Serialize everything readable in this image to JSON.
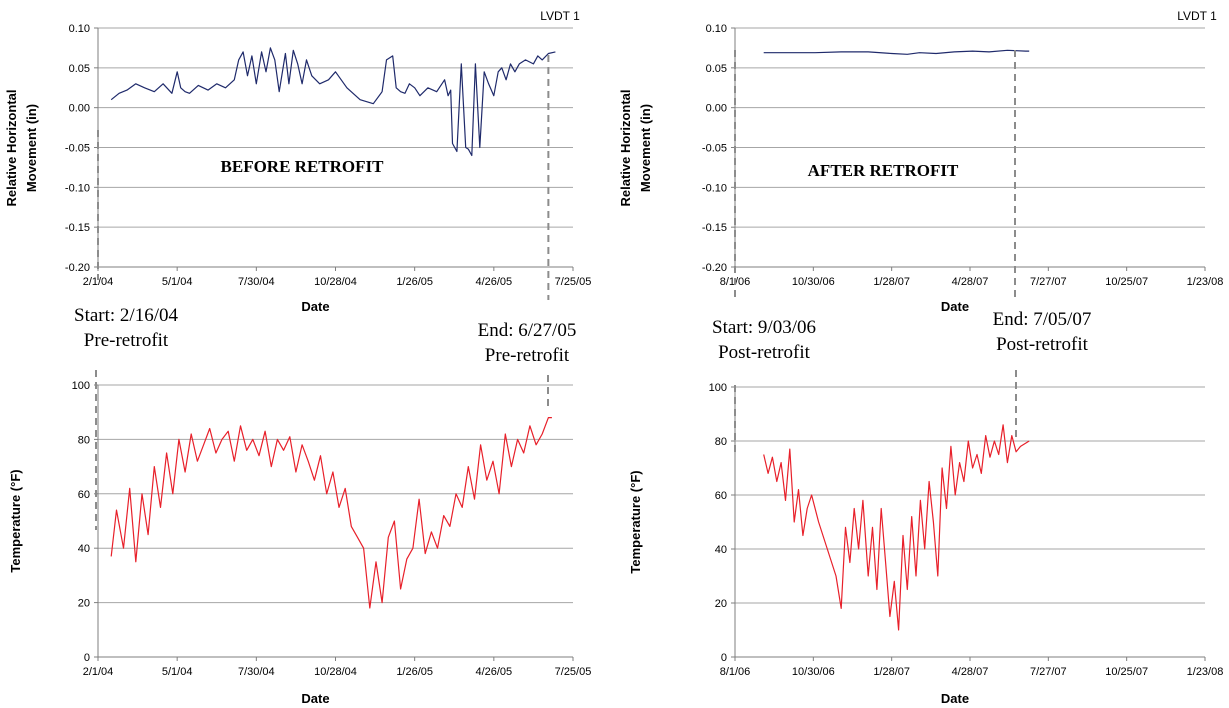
{
  "colors": {
    "movement_line": "#1f2a6b",
    "temperature_line": "#e8202a",
    "grid": "#a6a6a6",
    "axis": "#7f7f7f",
    "dashed_marker": "#8c8c8c"
  },
  "annotations": {
    "start_pre": [
      "Start: 2/16/04",
      "Pre-retrofit"
    ],
    "end_pre": [
      "End: 6/27/05",
      "Pre-retrofit"
    ],
    "start_post": [
      "Start: 9/03/06",
      "Post-retrofit"
    ],
    "end_post": [
      "End: 7/05/07",
      "Post-retrofit"
    ]
  },
  "chart_data": [
    {
      "type": "line",
      "corner_label": "LVDT 1",
      "overlay_text": "BEFORE RETROFIT",
      "xlabel": "Date",
      "ylabel": [
        "Relative Horizontal",
        "Movement (in)"
      ],
      "xlim": [
        "2004-02-01",
        "2005-07-25"
      ],
      "x_ticks": [
        "2/1/04",
        "5/1/04",
        "7/30/04",
        "10/28/04",
        "1/26/05",
        "4/26/05",
        "7/25/05"
      ],
      "ylim": [
        -0.2,
        0.1
      ],
      "y_ticks": [
        "0.10",
        "0.05",
        "0.00",
        "-0.05",
        "-0.10",
        "-0.15",
        "-0.20"
      ],
      "grid": true,
      "markers": [
        "2004-02-16",
        "2005-06-27"
      ],
      "series": [
        {
          "x": [
            "2004-02-16",
            "2004-02-25",
            "2004-03-05",
            "2004-03-15",
            "2004-03-25",
            "2004-04-05",
            "2004-04-15",
            "2004-04-25",
            "2004-05-01",
            "2004-05-05",
            "2004-05-10",
            "2004-05-15",
            "2004-05-25",
            "2004-06-05",
            "2004-06-15",
            "2004-06-25",
            "2004-07-05",
            "2004-07-10",
            "2004-07-15",
            "2004-07-20",
            "2004-07-25",
            "2004-07-30",
            "2004-08-05",
            "2004-08-10",
            "2004-08-15",
            "2004-08-20",
            "2004-08-25",
            "2004-09-01",
            "2004-09-05",
            "2004-09-10",
            "2004-09-15",
            "2004-09-20",
            "2004-09-25",
            "2004-10-01",
            "2004-10-10",
            "2004-10-20",
            "2004-10-28",
            "2004-11-10",
            "2004-11-25",
            "2004-12-10",
            "2004-12-20",
            "2004-12-25",
            "2005-01-01",
            "2005-01-05",
            "2005-01-10",
            "2005-01-15",
            "2005-01-20",
            "2005-01-26",
            "2005-02-01",
            "2005-02-10",
            "2005-02-20",
            "2005-03-01",
            "2005-03-05",
            "2005-03-08",
            "2005-03-10",
            "2005-03-15",
            "2005-03-20",
            "2005-03-25",
            "2005-03-28",
            "2005-04-01",
            "2005-04-05",
            "2005-04-10",
            "2005-04-15",
            "2005-04-20",
            "2005-04-26",
            "2005-05-01",
            "2005-05-05",
            "2005-05-10",
            "2005-05-15",
            "2005-05-20",
            "2005-05-25",
            "2005-06-01",
            "2005-06-10",
            "2005-06-15",
            "2005-06-20",
            "2005-06-27",
            "2005-07-05"
          ],
          "values": [
            0.01,
            0.018,
            0.022,
            0.03,
            0.025,
            0.02,
            0.03,
            0.018,
            0.045,
            0.025,
            0.02,
            0.018,
            0.028,
            0.022,
            0.03,
            0.025,
            0.035,
            0.06,
            0.07,
            0.04,
            0.065,
            0.03,
            0.07,
            0.045,
            0.075,
            0.06,
            0.02,
            0.068,
            0.03,
            0.072,
            0.055,
            0.03,
            0.06,
            0.04,
            0.03,
            0.035,
            0.045,
            0.025,
            0.01,
            0.005,
            0.02,
            0.06,
            0.065,
            0.025,
            0.02,
            0.018,
            0.03,
            0.025,
            0.015,
            0.025,
            0.02,
            0.035,
            0.015,
            0.022,
            -0.045,
            -0.055,
            0.055,
            -0.05,
            -0.052,
            -0.06,
            0.055,
            -0.05,
            0.045,
            0.03,
            0.015,
            0.045,
            0.05,
            0.035,
            0.055,
            0.045,
            0.055,
            0.06,
            0.055,
            0.065,
            0.06,
            0.068,
            0.07
          ]
        }
      ]
    },
    {
      "type": "line",
      "corner_label": "LVDT 1",
      "overlay_text": "AFTER RETROFIT",
      "xlabel": "Date",
      "ylabel": [
        "Relative Horizontal",
        "Movement (in)"
      ],
      "xlim": [
        "2006-08-01",
        "2008-01-23"
      ],
      "x_ticks": [
        "8/1/06",
        "10/30/06",
        "1/28/07",
        "4/28/07",
        "7/27/07",
        "10/25/07",
        "1/23/08"
      ],
      "ylim": [
        -0.2,
        0.1
      ],
      "y_ticks": [
        "0.10",
        "0.05",
        "0.00",
        "-0.05",
        "-0.10",
        "-0.15",
        "-0.20"
      ],
      "grid": true,
      "markers": [
        "2006-09-03",
        "2007-07-05"
      ],
      "series": [
        {
          "x": [
            "2006-09-03",
            "2006-10-01",
            "2006-11-01",
            "2006-12-01",
            "2007-01-01",
            "2007-01-28",
            "2007-02-15",
            "2007-03-01",
            "2007-03-20",
            "2007-04-10",
            "2007-05-01",
            "2007-05-20",
            "2007-06-10",
            "2007-07-01",
            "2007-07-05"
          ],
          "values": [
            0.069,
            0.069,
            0.069,
            0.07,
            0.07,
            0.068,
            0.067,
            0.069,
            0.068,
            0.07,
            0.071,
            0.07,
            0.072,
            0.071,
            0.071
          ]
        }
      ]
    },
    {
      "type": "line",
      "xlabel": "Date",
      "ylabel": "Temperature (°F)",
      "xlim": [
        "2004-02-01",
        "2005-07-25"
      ],
      "x_ticks": [
        "2/1/04",
        "5/1/04",
        "7/30/04",
        "10/28/04",
        "1/26/05",
        "4/26/05",
        "7/25/05"
      ],
      "ylim": [
        0,
        100
      ],
      "y_ticks": [
        "100",
        "80",
        "60",
        "40",
        "20",
        "0"
      ],
      "grid": true,
      "markers": [
        "2004-02-16"
      ],
      "series": [
        {
          "x": [
            "2004-02-16",
            "2004-02-22",
            "2004-03-01",
            "2004-03-08",
            "2004-03-15",
            "2004-03-22",
            "2004-03-29",
            "2004-04-05",
            "2004-04-12",
            "2004-04-19",
            "2004-04-26",
            "2004-05-03",
            "2004-05-10",
            "2004-05-17",
            "2004-05-24",
            "2004-05-31",
            "2004-06-07",
            "2004-06-14",
            "2004-06-21",
            "2004-06-28",
            "2004-07-05",
            "2004-07-12",
            "2004-07-19",
            "2004-07-26",
            "2004-08-02",
            "2004-08-09",
            "2004-08-16",
            "2004-08-23",
            "2004-08-30",
            "2004-09-06",
            "2004-09-13",
            "2004-09-20",
            "2004-09-27",
            "2004-10-04",
            "2004-10-11",
            "2004-10-18",
            "2004-10-25",
            "2004-11-01",
            "2004-11-08",
            "2004-11-15",
            "2004-11-22",
            "2004-11-29",
            "2004-12-06",
            "2004-12-13",
            "2004-12-20",
            "2004-12-27",
            "2005-01-03",
            "2005-01-10",
            "2005-01-17",
            "2005-01-24",
            "2005-01-31",
            "2005-02-07",
            "2005-02-14",
            "2005-02-21",
            "2005-02-28",
            "2005-03-07",
            "2005-03-14",
            "2005-03-21",
            "2005-03-28",
            "2005-04-04",
            "2005-04-11",
            "2005-04-18",
            "2005-04-25",
            "2005-05-02",
            "2005-05-09",
            "2005-05-16",
            "2005-05-23",
            "2005-05-30",
            "2005-06-06",
            "2005-06-13",
            "2005-06-20",
            "2005-06-27",
            "2005-07-01"
          ],
          "values": [
            37,
            54,
            40,
            62,
            35,
            60,
            45,
            70,
            55,
            75,
            60,
            80,
            68,
            82,
            72,
            78,
            84,
            75,
            80,
            83,
            72,
            85,
            76,
            80,
            74,
            83,
            70,
            80,
            76,
            81,
            68,
            78,
            72,
            65,
            74,
            60,
            68,
            55,
            62,
            48,
            44,
            40,
            18,
            35,
            20,
            44,
            50,
            25,
            36,
            40,
            58,
            38,
            46,
            40,
            52,
            48,
            60,
            55,
            70,
            58,
            78,
            65,
            72,
            60,
            82,
            70,
            80,
            75,
            85,
            78,
            82,
            88,
            88
          ]
        }
      ]
    },
    {
      "type": "line",
      "xlabel": "Date",
      "ylabel": "Temperature (°F)",
      "xlim": [
        "2006-08-01",
        "2008-01-23"
      ],
      "x_ticks": [
        "8/1/06",
        "10/30/06",
        "1/28/07",
        "4/28/07",
        "7/27/07",
        "10/25/07",
        "1/23/08"
      ],
      "ylim": [
        0,
        100
      ],
      "y_ticks": [
        "100",
        "80",
        "60",
        "40",
        "20",
        "0"
      ],
      "grid": true,
      "markers": [],
      "series": [
        {
          "x": [
            "2006-09-03",
            "2006-09-08",
            "2006-09-13",
            "2006-09-18",
            "2006-09-23",
            "2006-09-28",
            "2006-10-03",
            "2006-10-08",
            "2006-10-13",
            "2006-10-18",
            "2006-10-23",
            "2006-10-28",
            "2006-11-05",
            "2006-11-15",
            "2006-11-25",
            "2006-12-01",
            "2006-12-06",
            "2006-12-11",
            "2006-12-16",
            "2006-12-21",
            "2006-12-26",
            "2007-01-01",
            "2007-01-06",
            "2007-01-11",
            "2007-01-16",
            "2007-01-21",
            "2007-01-26",
            "2007-01-31",
            "2007-02-05",
            "2007-02-10",
            "2007-02-15",
            "2007-02-20",
            "2007-02-25",
            "2007-03-02",
            "2007-03-07",
            "2007-03-12",
            "2007-03-17",
            "2007-03-22",
            "2007-03-27",
            "2007-04-01",
            "2007-04-06",
            "2007-04-11",
            "2007-04-16",
            "2007-04-21",
            "2007-04-26",
            "2007-05-01",
            "2007-05-06",
            "2007-05-11",
            "2007-05-16",
            "2007-05-21",
            "2007-05-26",
            "2007-05-31",
            "2007-06-05",
            "2007-06-10",
            "2007-06-15",
            "2007-06-20",
            "2007-06-25",
            "2007-07-05"
          ],
          "values": [
            75,
            68,
            74,
            65,
            72,
            58,
            77,
            50,
            62,
            45,
            55,
            60,
            50,
            40,
            30,
            18,
            48,
            35,
            55,
            40,
            58,
            30,
            48,
            25,
            55,
            35,
            15,
            28,
            10,
            45,
            25,
            52,
            30,
            58,
            40,
            65,
            50,
            30,
            70,
            55,
            78,
            60,
            72,
            65,
            80,
            70,
            75,
            68,
            82,
            74,
            80,
            75,
            86,
            72,
            82,
            76,
            78,
            80
          ]
        }
      ]
    }
  ]
}
